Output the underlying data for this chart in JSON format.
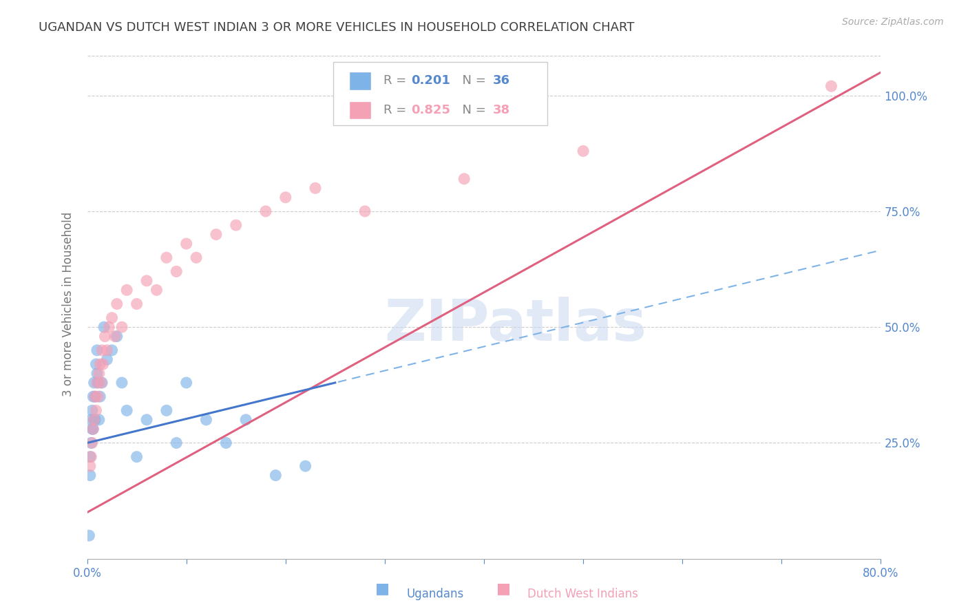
{
  "title": "UGANDAN VS DUTCH WEST INDIAN 3 OR MORE VEHICLES IN HOUSEHOLD CORRELATION CHART",
  "source": "Source: ZipAtlas.com",
  "ylabel": "3 or more Vehicles in Household",
  "xlim": [
    0.0,
    0.8
  ],
  "ylim": [
    0.0,
    1.1
  ],
  "ugandan_color": "#7EB3E8",
  "ugandan_line_color": "#4477CC",
  "dutch_color": "#F4A0B5",
  "dutch_line_color": "#E06080",
  "ugandan_R": 0.201,
  "ugandan_N": 36,
  "dutch_R": 0.825,
  "dutch_N": 38,
  "watermark": "ZIPatlas",
  "ugandan_x": [
    0.002,
    0.003,
    0.003,
    0.004,
    0.004,
    0.005,
    0.005,
    0.006,
    0.006,
    0.007,
    0.007,
    0.008,
    0.008,
    0.009,
    0.01,
    0.01,
    0.011,
    0.012,
    0.013,
    0.015,
    0.017,
    0.02,
    0.025,
    0.03,
    0.035,
    0.04,
    0.05,
    0.06,
    0.08,
    0.09,
    0.1,
    0.12,
    0.14,
    0.16,
    0.19,
    0.22
  ],
  "ugandan_y": [
    0.05,
    0.18,
    0.22,
    0.25,
    0.3,
    0.28,
    0.32,
    0.35,
    0.28,
    0.3,
    0.38,
    0.3,
    0.35,
    0.42,
    0.4,
    0.45,
    0.38,
    0.3,
    0.35,
    0.38,
    0.5,
    0.43,
    0.45,
    0.48,
    0.38,
    0.32,
    0.22,
    0.3,
    0.32,
    0.25,
    0.38,
    0.3,
    0.25,
    0.3,
    0.18,
    0.2
  ],
  "dutch_x": [
    0.003,
    0.004,
    0.005,
    0.006,
    0.007,
    0.008,
    0.009,
    0.01,
    0.011,
    0.012,
    0.013,
    0.014,
    0.015,
    0.016,
    0.018,
    0.02,
    0.022,
    0.025,
    0.028,
    0.03,
    0.035,
    0.04,
    0.05,
    0.06,
    0.07,
    0.08,
    0.09,
    0.1,
    0.11,
    0.13,
    0.15,
    0.18,
    0.2,
    0.23,
    0.28,
    0.38,
    0.5,
    0.75
  ],
  "dutch_y": [
    0.2,
    0.22,
    0.25,
    0.28,
    0.3,
    0.35,
    0.32,
    0.38,
    0.35,
    0.4,
    0.42,
    0.38,
    0.45,
    0.42,
    0.48,
    0.45,
    0.5,
    0.52,
    0.48,
    0.55,
    0.5,
    0.58,
    0.55,
    0.6,
    0.58,
    0.65,
    0.62,
    0.68,
    0.65,
    0.7,
    0.72,
    0.75,
    0.78,
    0.8,
    0.75,
    0.82,
    0.88,
    1.02
  ],
  "background_color": "#FFFFFF",
  "grid_color": "#CCCCCC",
  "title_color": "#404040",
  "axis_label_color": "#777777",
  "right_tick_color": "#5588CC",
  "bottom_tick_color": "#5588CC"
}
